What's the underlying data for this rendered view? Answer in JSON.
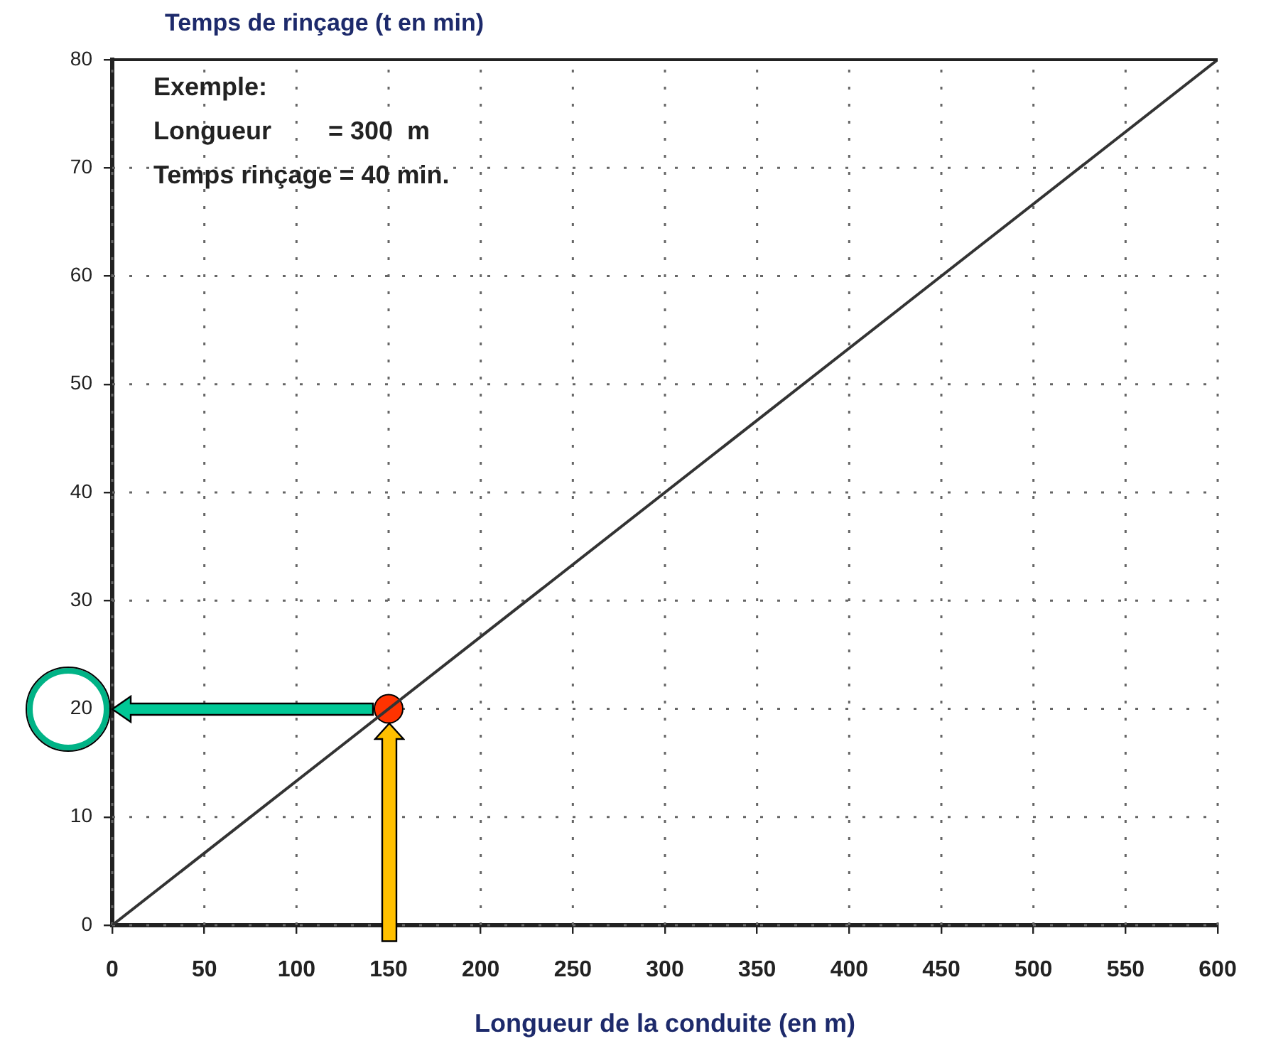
{
  "chart_data": {
    "type": "line",
    "ylabel": "Temps de rinçage (t en min)",
    "xlabel": "Longueur de la conduite (en m)",
    "series": [
      {
        "color": "#333333",
        "x": [
          0,
          600
        ],
        "values": [
          0,
          80
        ]
      },
      {
        "type": "scatter",
        "color": "#ff3300",
        "x": [
          150
        ],
        "values": [
          20
        ]
      }
    ],
    "xlim": [
      0,
      600
    ],
    "xticks": [
      0,
      50,
      100,
      150,
      200,
      250,
      300,
      350,
      400,
      450,
      500,
      550,
      600
    ],
    "ylim": [
      0,
      80
    ],
    "yticks": [
      0,
      10,
      20,
      30,
      40,
      50,
      60,
      70,
      80
    ],
    "grid": true,
    "annotations": [
      "Exemple:",
      "Longueur        = 300  m",
      "Temps rinçage = 40 min."
    ]
  }
}
